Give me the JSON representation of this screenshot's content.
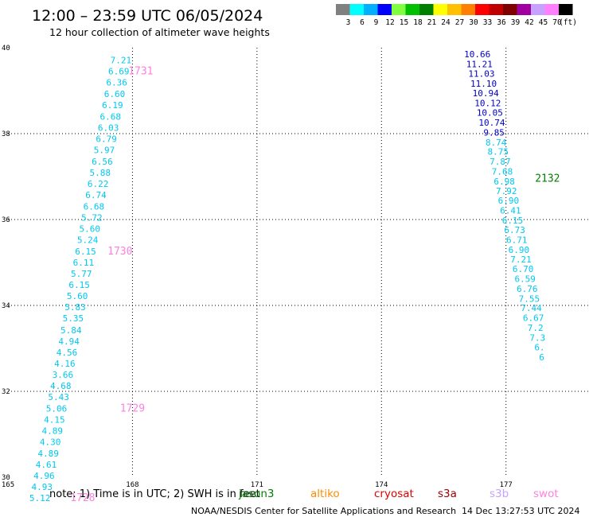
{
  "header": {
    "title": "12:00 – 23:59 UTC 06/05/2024",
    "subtitle": "12 hour collection of altimeter wave heights"
  },
  "legend": {
    "colors": [
      "#808080",
      "#00ffff",
      "#00b0ff",
      "#0000ff",
      "#80ff40",
      "#00c000",
      "#008000",
      "#ffff00",
      "#ffc000",
      "#ff8000",
      "#ff0000",
      "#c00000",
      "#800000",
      "#a000a0",
      "#c8a0ff",
      "#ff80ff",
      "#000000"
    ],
    "labels": [
      "3",
      "6",
      "9",
      "12",
      "15",
      "18",
      "21",
      "24",
      "27",
      "30",
      "33",
      "36",
      "39",
      "42",
      "45",
      "70",
      "(ft)"
    ]
  },
  "chart_data": {
    "type": "scatter",
    "xlim": [
      165,
      179
    ],
    "ylim": [
      30,
      40
    ],
    "x_ticks": [
      "165",
      "168",
      "171",
      "174",
      "177"
    ],
    "y_ticks": [
      "30",
      "32",
      "34",
      "36",
      "38",
      "40"
    ],
    "grid": true,
    "tracks": [
      {
        "color": "#00c8f0",
        "points": [
          {
            "x": 167.72,
            "y": 39.71,
            "label": "7.21"
          },
          {
            "x": 167.67,
            "y": 39.45,
            "label": "6.69"
          },
          {
            "x": 167.62,
            "y": 39.19,
            "label": "6.36"
          },
          {
            "x": 167.57,
            "y": 38.93,
            "label": "6.60"
          },
          {
            "x": 167.52,
            "y": 38.67,
            "label": "6.19"
          },
          {
            "x": 167.47,
            "y": 38.4,
            "label": "6.68"
          },
          {
            "x": 167.42,
            "y": 38.14,
            "label": "6.03"
          },
          {
            "x": 167.37,
            "y": 37.88,
            "label": "6.79"
          },
          {
            "x": 167.32,
            "y": 37.62,
            "label": "5.97"
          },
          {
            "x": 167.27,
            "y": 37.35,
            "label": "6.56"
          },
          {
            "x": 167.22,
            "y": 37.09,
            "label": "5.88"
          },
          {
            "x": 167.17,
            "y": 36.83,
            "label": "6.22"
          },
          {
            "x": 167.12,
            "y": 36.57,
            "label": "6.74"
          },
          {
            "x": 167.07,
            "y": 36.31,
            "label": "6.68"
          },
          {
            "x": 167.02,
            "y": 36.05,
            "label": "5.72"
          },
          {
            "x": 166.97,
            "y": 35.79,
            "label": "5.60"
          },
          {
            "x": 166.92,
            "y": 35.53,
            "label": "5.24"
          },
          {
            "x": 166.87,
            "y": 35.26,
            "label": "6.15"
          },
          {
            "x": 166.82,
            "y": 35.0,
            "label": "6.11"
          },
          {
            "x": 166.77,
            "y": 34.74,
            "label": "5.77"
          },
          {
            "x": 166.72,
            "y": 34.48,
            "label": "6.15"
          },
          {
            "x": 166.67,
            "y": 34.22,
            "label": "5.60"
          },
          {
            "x": 166.62,
            "y": 33.96,
            "label": "5.83"
          },
          {
            "x": 166.57,
            "y": 33.7,
            "label": "5.35"
          },
          {
            "x": 166.52,
            "y": 33.43,
            "label": "5.84"
          },
          {
            "x": 166.47,
            "y": 33.17,
            "label": "4.94"
          },
          {
            "x": 166.42,
            "y": 32.91,
            "label": "4.56"
          },
          {
            "x": 166.37,
            "y": 32.65,
            "label": "4.16"
          },
          {
            "x": 166.32,
            "y": 32.39,
            "label": "3.66"
          },
          {
            "x": 166.27,
            "y": 32.13,
            "label": "4.68"
          },
          {
            "x": 166.22,
            "y": 31.87,
            "label": "5.43"
          },
          {
            "x": 166.17,
            "y": 31.6,
            "label": "5.06"
          },
          {
            "x": 166.12,
            "y": 31.34,
            "label": "4.15"
          },
          {
            "x": 166.07,
            "y": 31.08,
            "label": "4.89"
          },
          {
            "x": 166.02,
            "y": 30.82,
            "label": "4.30"
          },
          {
            "x": 165.97,
            "y": 30.56,
            "label": "4.89"
          },
          {
            "x": 165.92,
            "y": 30.3,
            "label": "4.61"
          },
          {
            "x": 165.87,
            "y": 30.04,
            "label": "4.96"
          },
          {
            "x": 165.82,
            "y": 29.78,
            "label": "4.93"
          },
          {
            "x": 165.77,
            "y": 29.52,
            "label": "5.12"
          }
        ]
      },
      {
        "color": "#0000c8",
        "points": [
          {
            "x": 176.31,
            "y": 39.85,
            "label": "10.66"
          },
          {
            "x": 176.36,
            "y": 39.62,
            "label": "11.21"
          },
          {
            "x": 176.41,
            "y": 39.4,
            "label": "11.03"
          },
          {
            "x": 176.46,
            "y": 39.17,
            "label": "11.10"
          },
          {
            "x": 176.51,
            "y": 38.94,
            "label": "10.94"
          },
          {
            "x": 176.56,
            "y": 38.71,
            "label": "10.12"
          },
          {
            "x": 176.61,
            "y": 38.49,
            "label": "10.05"
          },
          {
            "x": 176.66,
            "y": 38.26,
            "label": "10.74"
          },
          {
            "x": 176.71,
            "y": 38.03,
            "label": "9.85"
          }
        ]
      },
      {
        "color": "#00c8f0",
        "points": [
          {
            "x": 176.76,
            "y": 37.8,
            "label": "8.74"
          },
          {
            "x": 176.81,
            "y": 37.58,
            "label": "8.75"
          },
          {
            "x": 176.86,
            "y": 37.35,
            "label": "7.87"
          },
          {
            "x": 176.91,
            "y": 37.12,
            "label": "7.68"
          },
          {
            "x": 176.96,
            "y": 36.89,
            "label": "6.98"
          },
          {
            "x": 177.01,
            "y": 36.67,
            "label": "7.92"
          },
          {
            "x": 177.06,
            "y": 36.44,
            "label": "6.90"
          },
          {
            "x": 177.11,
            "y": 36.21,
            "label": "6.41"
          },
          {
            "x": 177.16,
            "y": 35.98,
            "label": "6.15"
          },
          {
            "x": 177.21,
            "y": 35.76,
            "label": "6.73"
          },
          {
            "x": 177.26,
            "y": 35.53,
            "label": "6.71"
          },
          {
            "x": 177.31,
            "y": 35.3,
            "label": "6.90"
          },
          {
            "x": 177.36,
            "y": 35.07,
            "label": "7.21"
          },
          {
            "x": 177.41,
            "y": 34.85,
            "label": "6.70"
          },
          {
            "x": 177.46,
            "y": 34.62,
            "label": "6.59"
          },
          {
            "x": 177.51,
            "y": 34.39,
            "label": "6.76"
          },
          {
            "x": 177.56,
            "y": 34.16,
            "label": "7.55"
          },
          {
            "x": 177.61,
            "y": 33.94,
            "label": "7.44"
          },
          {
            "x": 177.66,
            "y": 33.71,
            "label": "6.67"
          },
          {
            "x": 177.71,
            "y": 33.48,
            "label": "7.2"
          },
          {
            "x": 177.76,
            "y": 33.25,
            "label": "7.3"
          },
          {
            "x": 177.81,
            "y": 33.03,
            "label": "6."
          },
          {
            "x": 177.86,
            "y": 32.8,
            "label": "6"
          }
        ]
      }
    ],
    "time_labels": [
      {
        "x": 168.2,
        "y": 39.45,
        "text": "1731",
        "color": "#ff80e0"
      },
      {
        "x": 167.7,
        "y": 35.26,
        "text": "1730",
        "color": "#ff80e0"
      },
      {
        "x": 168.0,
        "y": 31.6,
        "text": "1729",
        "color": "#ff80e0"
      },
      {
        "x": 166.8,
        "y": 29.52,
        "text": "1728",
        "color": "#ff80e0"
      },
      {
        "x": 178.0,
        "y": 36.95,
        "text": "2132",
        "color": "#008000"
      }
    ]
  },
  "footer": {
    "note": "note: 1) Time is in UTC; 2) SWH is in feet",
    "satellites": [
      {
        "text": "jason3",
        "color": "#008000"
      },
      {
        "text": "altiko",
        "color": "#ff8c00"
      },
      {
        "text": "cryosat",
        "color": "#e00000"
      },
      {
        "text": "s3a",
        "color": "#a00000"
      },
      {
        "text": "s3b",
        "color": "#c8a0ff"
      },
      {
        "text": "swot",
        "color": "#ff80e0"
      }
    ],
    "credit": "NOAA/NESDIS Center for Satellite Applications and Research",
    "timestamp": "14 Dec 13:27:53 UTC 2024"
  }
}
